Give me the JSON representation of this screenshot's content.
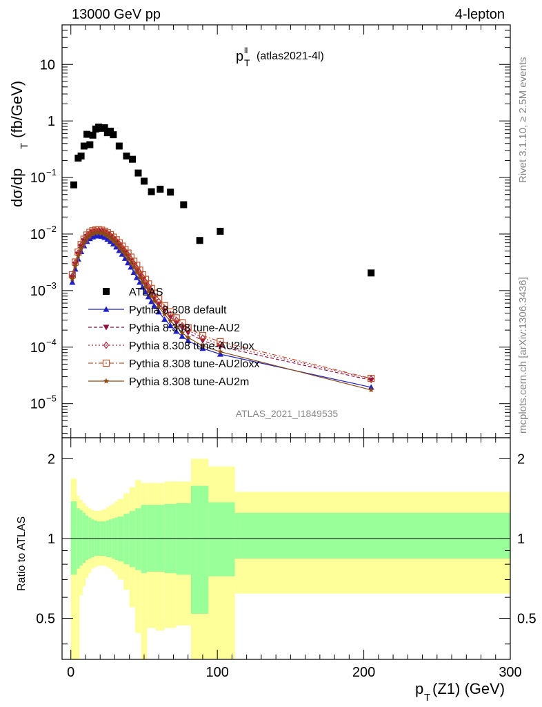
{
  "header": {
    "left": "13000 GeV pp",
    "right": "4-lepton"
  },
  "plot_title": {
    "main": "p",
    "sup": "ll",
    "sub": "T",
    "note": "(atlas2021-4l)"
  },
  "side_labels": {
    "rivet": "Rivet 3.1.10, ≥ 2.5M events",
    "mcplots": "mcplots.cern.ch [arXiv:1306.3436]"
  },
  "analysis_id": "ATLAS_2021_I1849535",
  "colors": {
    "data": "#000000",
    "default": "#1f1fc8",
    "au2": "#8b1040",
    "au2lox": "#b0203a",
    "au2loxx": "#c0502a",
    "au2m": "#8b4a14",
    "band_inner": "#99ff99",
    "band_outer": "#ffff99"
  },
  "chart_data": [
    {
      "type": "scatter",
      "panel": "main",
      "xlabel": "",
      "ylabel_main": "dσ/dp",
      "ylabel_sub": "T",
      "ylabel_unit": "(fb/GeV)",
      "yscale": "log",
      "xlim": [
        -6,
        300
      ],
      "ylim": [
        2.5e-06,
        50
      ],
      "y_ticks": [
        {
          "value": 10,
          "label": "10"
        },
        {
          "value": 1,
          "label": "1"
        },
        {
          "value": 0.1,
          "label": "10",
          "exp": "−1"
        },
        {
          "value": 0.01,
          "label": "10",
          "exp": "−2"
        },
        {
          "value": 0.001,
          "label": "10",
          "exp": "−3"
        },
        {
          "value": 0.0001,
          "label": "10",
          "exp": "−4"
        },
        {
          "value": 1e-05,
          "label": "10",
          "exp": "−5"
        }
      ],
      "data_points": {
        "name": "ATLAS",
        "x": [
          2,
          5,
          7,
          9,
          11,
          13,
          15,
          17,
          19,
          21,
          23,
          25,
          27,
          29,
          33,
          38,
          42,
          46,
          50,
          55,
          61,
          68,
          77,
          88,
          102,
          205
        ],
        "y": [
          0.074,
          0.22,
          0.24,
          0.36,
          0.58,
          0.38,
          0.56,
          0.72,
          0.78,
          0.74,
          0.76,
          0.62,
          0.66,
          0.57,
          0.36,
          0.24,
          0.21,
          0.12,
          0.086,
          0.056,
          0.062,
          0.055,
          0.033,
          0.0077,
          0.0112,
          0.00205
        ]
      },
      "series": [
        {
          "name": "Pythia 8.308 default",
          "marker": "triangle-up",
          "dash": "solid",
          "x": [
            1,
            3,
            5,
            7,
            9,
            11,
            13,
            15,
            17,
            19,
            21,
            23,
            25,
            27,
            29,
            31,
            33,
            35,
            37,
            39,
            41,
            43,
            45,
            47,
            49,
            51,
            53,
            55,
            57,
            60,
            64,
            68,
            72,
            76,
            80,
            90,
            102,
            205
          ],
          "y": [
            0.0014,
            0.0024,
            0.0036,
            0.0049,
            0.0062,
            0.0074,
            0.0083,
            0.0089,
            0.0092,
            0.0093,
            0.0091,
            0.0087,
            0.0081,
            0.0074,
            0.0067,
            0.0059,
            0.0051,
            0.0044,
            0.0037,
            0.0031,
            0.0026,
            0.0021,
            0.0017,
            0.0014,
            0.00115,
            0.00095,
            0.00078,
            0.00064,
            0.00053,
            0.00042,
            0.00031,
            0.00024,
            0.00019,
            0.000155,
            0.00013,
            9.5e-05,
            7.5e-05,
            1.95e-05
          ]
        },
        {
          "name": "Pythia 8.308 tune-AU2",
          "marker": "triangle-down",
          "dash": "dashed",
          "x": [
            1,
            3,
            5,
            7,
            9,
            11,
            13,
            15,
            17,
            19,
            21,
            23,
            25,
            27,
            29,
            31,
            33,
            35,
            37,
            39,
            41,
            43,
            45,
            47,
            49,
            51,
            53,
            55,
            57,
            60,
            64,
            68,
            72,
            76,
            80,
            90,
            102,
            205
          ],
          "y": [
            0.0017,
            0.0029,
            0.0044,
            0.006,
            0.0076,
            0.009,
            0.0101,
            0.0108,
            0.0112,
            0.0113,
            0.0111,
            0.0106,
            0.0099,
            0.0091,
            0.0082,
            0.0073,
            0.0064,
            0.0055,
            0.0047,
            0.004,
            0.0034,
            0.0028,
            0.0023,
            0.0019,
            0.00158,
            0.0013,
            0.00108,
            0.00089,
            0.00074,
            0.00058,
            0.00044,
            0.00034,
            0.00027,
            0.00022,
            0.00018,
            0.00013,
            0.000102,
            2.6e-05
          ]
        },
        {
          "name": "Pythia 8.308 tune-AU2lox",
          "marker": "diamond-open",
          "dash": "dotted",
          "x": [
            1,
            3,
            5,
            7,
            9,
            11,
            13,
            15,
            17,
            19,
            21,
            23,
            25,
            27,
            29,
            31,
            33,
            35,
            37,
            39,
            41,
            43,
            45,
            47,
            49,
            51,
            53,
            55,
            57,
            60,
            64,
            68,
            72,
            76,
            80,
            90,
            102,
            205
          ],
          "y": [
            0.0018,
            0.0031,
            0.0046,
            0.0063,
            0.0079,
            0.0093,
            0.0104,
            0.0111,
            0.0115,
            0.0116,
            0.0114,
            0.0109,
            0.0102,
            0.0094,
            0.0085,
            0.0076,
            0.0067,
            0.0058,
            0.005,
            0.0043,
            0.0036,
            0.003,
            0.0025,
            0.0021,
            0.00172,
            0.00142,
            0.00118,
            0.00098,
            0.00081,
            0.00064,
            0.00049,
            0.00038,
            0.0003,
            0.00024,
            0.0002,
            0.000145,
            0.000112,
            2.75e-05
          ]
        },
        {
          "name": "Pythia 8.308 tune-AU2loxx",
          "marker": "square-open",
          "dash": "dashdot",
          "x": [
            1,
            3,
            5,
            7,
            9,
            11,
            13,
            15,
            17,
            19,
            21,
            23,
            25,
            27,
            29,
            31,
            33,
            35,
            37,
            39,
            41,
            43,
            45,
            47,
            49,
            51,
            53,
            55,
            57,
            60,
            64,
            68,
            72,
            76,
            80,
            90,
            102,
            205
          ],
          "y": [
            0.0019,
            0.0032,
            0.0048,
            0.0065,
            0.0081,
            0.0096,
            0.0107,
            0.0114,
            0.0118,
            0.0119,
            0.0117,
            0.0112,
            0.0105,
            0.0097,
            0.0088,
            0.0079,
            0.007,
            0.0061,
            0.0053,
            0.0046,
            0.0039,
            0.0033,
            0.0028,
            0.0023,
            0.0019,
            0.00158,
            0.00131,
            0.00109,
            0.0009,
            0.00071,
            0.00054,
            0.00042,
            0.00033,
            0.00027,
            0.00022,
            0.00016,
            0.000125,
            2.8e-05
          ]
        },
        {
          "name": "Pythia 8.308 tune-AU2m",
          "marker": "star",
          "dash": "solid",
          "x": [
            1,
            3,
            5,
            7,
            9,
            11,
            13,
            15,
            17,
            19,
            21,
            23,
            25,
            27,
            29,
            31,
            33,
            35,
            37,
            39,
            41,
            43,
            45,
            47,
            49,
            51,
            53,
            55,
            57,
            60,
            64,
            68,
            72,
            76,
            80,
            90,
            102,
            205
          ],
          "y": [
            0.0016,
            0.0027,
            0.0041,
            0.0056,
            0.0071,
            0.0084,
            0.0094,
            0.0101,
            0.0105,
            0.0106,
            0.0104,
            0.0099,
            0.0093,
            0.0085,
            0.0077,
            0.0068,
            0.0059,
            0.0051,
            0.0044,
            0.0037,
            0.0031,
            0.0026,
            0.0021,
            0.0017,
            0.0014,
            0.00116,
            0.00096,
            0.00079,
            0.00065,
            0.00051,
            0.00038,
            0.00029,
            0.00023,
            0.00018,
            0.000148,
            0.000105,
            8.3e-05,
            1.75e-05
          ]
        }
      ]
    },
    {
      "type": "area",
      "panel": "ratio",
      "xlabel_main": "p",
      "xlabel_sub": "T",
      "xlabel_rest": "(Z1) (GeV)",
      "ylabel": "Ratio to ATLAS",
      "yscale": "log",
      "xlim": [
        -6,
        300
      ],
      "ylim": [
        0.35,
        2.4
      ],
      "x_ticks": [
        0,
        100,
        200,
        300
      ],
      "y_ticks": [
        {
          "value": 2,
          "label": "2"
        },
        {
          "value": 1,
          "label": "1"
        },
        {
          "value": 0.5,
          "label": "0.5"
        }
      ],
      "reference_line": 1,
      "bands": {
        "edges": [
          0,
          4,
          6,
          8,
          10,
          12,
          14,
          16,
          18,
          20,
          22,
          24,
          26,
          28,
          30,
          32,
          36,
          40,
          44,
          48,
          52,
          58,
          64,
          72,
          82,
          94,
          112,
          300
        ],
        "inner_hi": [
          1.38,
          1.3,
          1.28,
          1.25,
          1.22,
          1.2,
          1.18,
          1.17,
          1.16,
          1.16,
          1.16,
          1.17,
          1.18,
          1.19,
          1.2,
          1.21,
          1.24,
          1.27,
          1.3,
          1.34,
          1.34,
          1.34,
          1.35,
          1.36,
          1.58,
          1.37,
          1.25
        ],
        "inner_lo": [
          0.73,
          0.77,
          0.79,
          0.81,
          0.83,
          0.84,
          0.85,
          0.86,
          0.86,
          0.86,
          0.86,
          0.85,
          0.85,
          0.84,
          0.83,
          0.82,
          0.8,
          0.78,
          0.76,
          0.74,
          0.75,
          0.75,
          0.74,
          0.73,
          0.52,
          0.72,
          0.84
        ],
        "outer_hi": [
          1.68,
          1.45,
          1.4,
          1.36,
          1.32,
          1.3,
          1.28,
          1.27,
          1.27,
          1.28,
          1.29,
          1.31,
          1.33,
          1.35,
          1.38,
          1.41,
          1.48,
          1.56,
          1.66,
          1.62,
          1.62,
          1.62,
          1.64,
          1.64,
          2.0,
          1.87,
          1.5
        ],
        "outer_lo": [
          0.3,
          0.3,
          0.61,
          0.66,
          0.71,
          0.74,
          0.77,
          0.78,
          0.79,
          0.79,
          0.79,
          0.78,
          0.77,
          0.75,
          0.73,
          0.7,
          0.64,
          0.55,
          0.44,
          0.3,
          0.46,
          0.45,
          0.46,
          0.47,
          0.3,
          0.3,
          0.62
        ]
      }
    }
  ]
}
